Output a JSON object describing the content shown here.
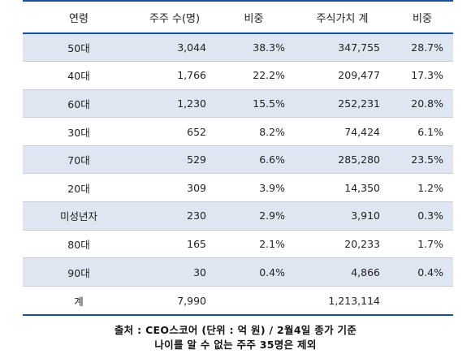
{
  "table": {
    "headers": [
      "연령",
      "주주 수(명)",
      "비중",
      "주식가치 계",
      "비중"
    ],
    "rows": [
      {
        "age": "50대",
        "holders": "3,044",
        "holders_share": "38.3%",
        "value": "347,755",
        "value_share": "28.7%"
      },
      {
        "age": "40대",
        "holders": "1,766",
        "holders_share": "22.2%",
        "value": "209,477",
        "value_share": "17.3%"
      },
      {
        "age": "60대",
        "holders": "1,230",
        "holders_share": "15.5%",
        "value": "252,231",
        "value_share": "20.8%"
      },
      {
        "age": "30대",
        "holders": "652",
        "holders_share": "8.2%",
        "value": "74,424",
        "value_share": "6.1%"
      },
      {
        "age": "70대",
        "holders": "529",
        "holders_share": "6.6%",
        "value": "285,280",
        "value_share": "23.5%"
      },
      {
        "age": "20대",
        "holders": "309",
        "holders_share": "3.9%",
        "value": "14,350",
        "value_share": "1.2%"
      },
      {
        "age": "미성년자",
        "holders": "230",
        "holders_share": "2.9%",
        "value": "3,910",
        "value_share": "0.3%"
      },
      {
        "age": "80대",
        "holders": "165",
        "holders_share": "2.1%",
        "value": "20,233",
        "value_share": "1.7%"
      },
      {
        "age": "90대",
        "holders": "30",
        "holders_share": "0.4%",
        "value": "4,866",
        "value_share": "0.4%"
      }
    ],
    "total": {
      "age": "계",
      "holders": "7,990",
      "holders_share": "",
      "value": "1,213,114",
      "value_share": ""
    }
  },
  "footnote": {
    "line1": "출처 : CEO스코어 (단위 : 억 원) / 2월4일 종가 기준",
    "line2": "나이를 알 수 없는 주주 35명은 제외"
  },
  "colors": {
    "header_rule": "#1a4fa0",
    "shaded_row": "#dfe6f2"
  }
}
